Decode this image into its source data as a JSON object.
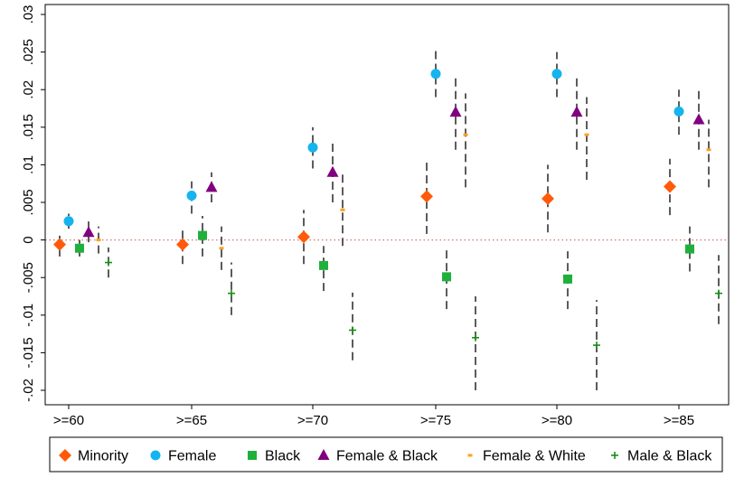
{
  "chart_data": {
    "type": "scatter",
    "subtype": "dot-with-error-bars",
    "categories": [
      ">=60",
      ">=65",
      ">=70",
      ">=75",
      ">=80",
      ">=85"
    ],
    "ylim": [
      -0.02,
      0.03
    ],
    "yticks": [
      -0.02,
      -0.015,
      -0.01,
      -0.005,
      0,
      0.005,
      0.01,
      0.015,
      0.02,
      0.025,
      0.03
    ],
    "ytick_labels": [
      "-.02",
      "-.015",
      "-.01",
      "-.005",
      "0",
      ".005",
      ".01",
      ".015",
      ".02",
      ".025",
      ".03"
    ],
    "reference_line": {
      "y": 0,
      "color": "#e07070",
      "style": "dotted"
    },
    "grid": false,
    "legend_position": "bottom",
    "series": [
      {
        "name": "Minority",
        "marker": "diamond",
        "color": "#ff5a0a",
        "values": [
          -0.0006,
          -0.0006,
          0.0004,
          0.0058,
          0.0055,
          0.0071
        ],
        "ci_low": [
          -0.0022,
          -0.0032,
          -0.0032,
          0.0008,
          0.001,
          0.0033
        ],
        "ci_high": [
          0.001,
          0.0018,
          0.004,
          0.0108,
          0.01,
          0.0108
        ]
      },
      {
        "name": "Female",
        "marker": "circle",
        "color": "#14b4f0",
        "values": [
          0.0025,
          0.0059,
          0.0123,
          0.0221,
          0.0221,
          0.0171
        ],
        "ci_low": [
          0.0015,
          0.0035,
          0.0095,
          0.019,
          0.019,
          0.014
        ],
        "ci_high": [
          0.0035,
          0.0078,
          0.015,
          0.0255,
          0.025,
          0.02
        ]
      },
      {
        "name": "Black",
        "marker": "square",
        "color": "#1fb03c",
        "values": [
          -0.0011,
          0.0006,
          -0.0034,
          -0.0049,
          -0.0052,
          -0.0012
        ],
        "ci_low": [
          -0.0022,
          -0.0022,
          -0.0068,
          -0.0092,
          -0.0092,
          -0.0042
        ],
        "ci_high": [
          0.0,
          0.0032,
          -0.0008,
          -0.0012,
          -0.0015,
          0.0018
        ]
      },
      {
        "name": "Female & Black",
        "marker": "triangle",
        "color": "#800080",
        "values": [
          0.001,
          0.007,
          0.009,
          0.017,
          0.017,
          0.016
        ],
        "ci_low": [
          -0.0003,
          0.005,
          0.005,
          0.012,
          0.012,
          0.012
        ],
        "ci_high": [
          0.003,
          0.009,
          0.013,
          0.022,
          0.022,
          0.02
        ]
      },
      {
        "name": "Female & White",
        "marker": "dash",
        "color": "#ffa21e",
        "values": [
          0.0,
          -0.0011,
          0.004,
          0.014,
          0.014,
          0.012
        ],
        "ci_low": [
          -0.0018,
          -0.004,
          -0.0008,
          0.007,
          0.008,
          0.007
        ],
        "ci_high": [
          0.0018,
          0.0018,
          0.009,
          0.0195,
          0.019,
          0.016
        ]
      },
      {
        "name": "Male & Black",
        "marker": "plus",
        "color": "#1a8c1a",
        "values": [
          -0.003,
          -0.0071,
          -0.012,
          -0.013,
          -0.014,
          -0.0071
        ],
        "ci_low": [
          -0.005,
          -0.01,
          -0.016,
          -0.02,
          -0.02,
          -0.0112
        ],
        "ci_high": [
          -0.001,
          -0.003,
          -0.007,
          -0.0075,
          -0.008,
          -0.002
        ]
      }
    ]
  }
}
